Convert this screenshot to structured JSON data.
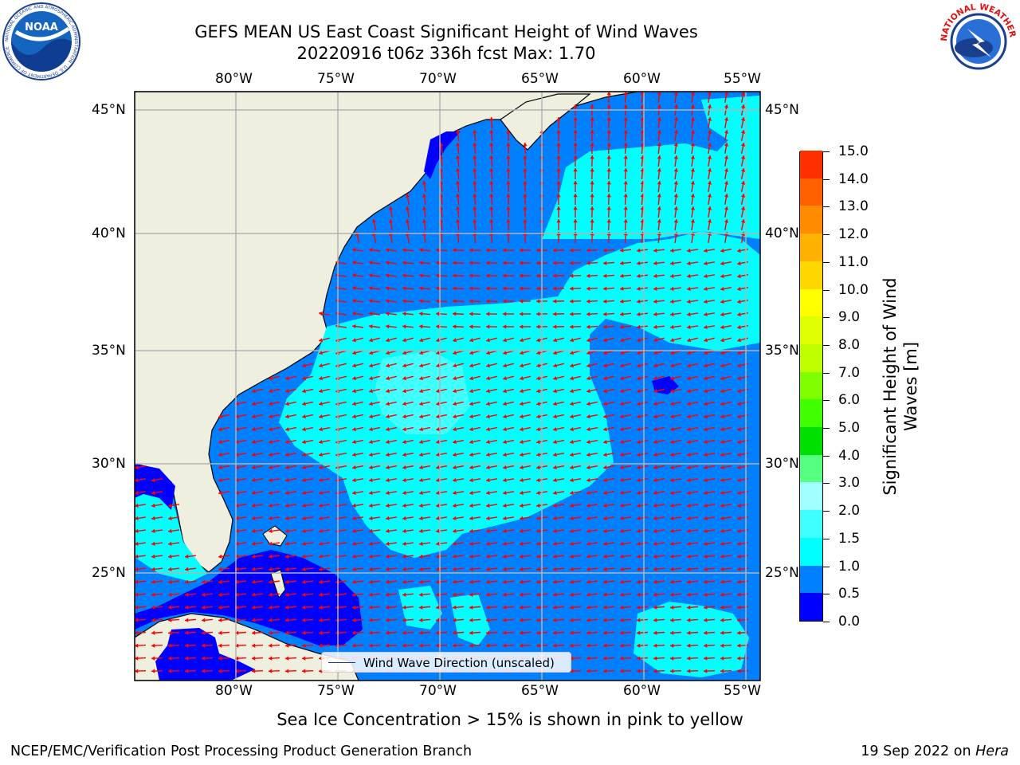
{
  "title": {
    "line1": "GEFS MEAN US East Coast Significant Height of Wind Waves",
    "line2": "20220916 t06z 336h fcst   Max: 1.70"
  },
  "logos": {
    "left": {
      "icon": "noaa-logo-icon",
      "text": "NOAA",
      "ring_text": "NATIONAL OCEANIC AND ATMOSPHERIC ADMINISTRATION · U.S. DEPARTMENT OF COMMERCE"
    },
    "right": {
      "icon": "nws-logo-icon",
      "ring_text": "NATIONAL WEATHER SERVICE"
    }
  },
  "map": {
    "projection": "Plate Carree",
    "lon_range": [
      -85,
      -54
    ],
    "lat_range": [
      20.5,
      46
    ],
    "lon_ticks": [
      "80°W",
      "75°W",
      "70°W",
      "65°W",
      "60°W",
      "55°W"
    ],
    "lat_ticks": [
      "45°N",
      "40°N",
      "35°N",
      "30°N",
      "25°N"
    ],
    "grid": true,
    "land_color": "#efefdf",
    "coastline_color": "#000000",
    "gridline_color": "#b3b3b3",
    "arrow_color": "#ff0000",
    "legend": {
      "label": "Wind Wave Direction (unscaled)",
      "placement": "bottom-center",
      "line_color": "#1f3a93"
    }
  },
  "colorbar": {
    "title_line1": "Significant Height of Wind",
    "title_line2": "Waves [m]",
    "ticks": [
      "15.0",
      "14.0",
      "13.0",
      "12.0",
      "11.0",
      "10.0",
      "9.0",
      "8.0",
      "7.0",
      "6.0",
      "5.0",
      "4.0",
      "3.0",
      "2.0",
      "1.5",
      "1.0",
      "0.5",
      "0.0"
    ],
    "colors_bottom_to_top": [
      "#0000ff",
      "#0080ff",
      "#00ffff",
      "#40ffff",
      "#a0ffff",
      "#55ff80",
      "#00e000",
      "#40ff00",
      "#80ff00",
      "#c0ff00",
      "#e0ff00",
      "#ffff00",
      "#ffd700",
      "#ffb000",
      "#ff8c00",
      "#ff6000",
      "#ff3000",
      "#ff0000"
    ]
  },
  "ice_note": "Sea Ice Concentration > 15% is shown in pink to yellow",
  "footer": {
    "left": "NCEP/EMC/Verification Post Processing Product Generation Branch",
    "right_date": "19 Sep 2022 on",
    "right_host": "Hera"
  }
}
